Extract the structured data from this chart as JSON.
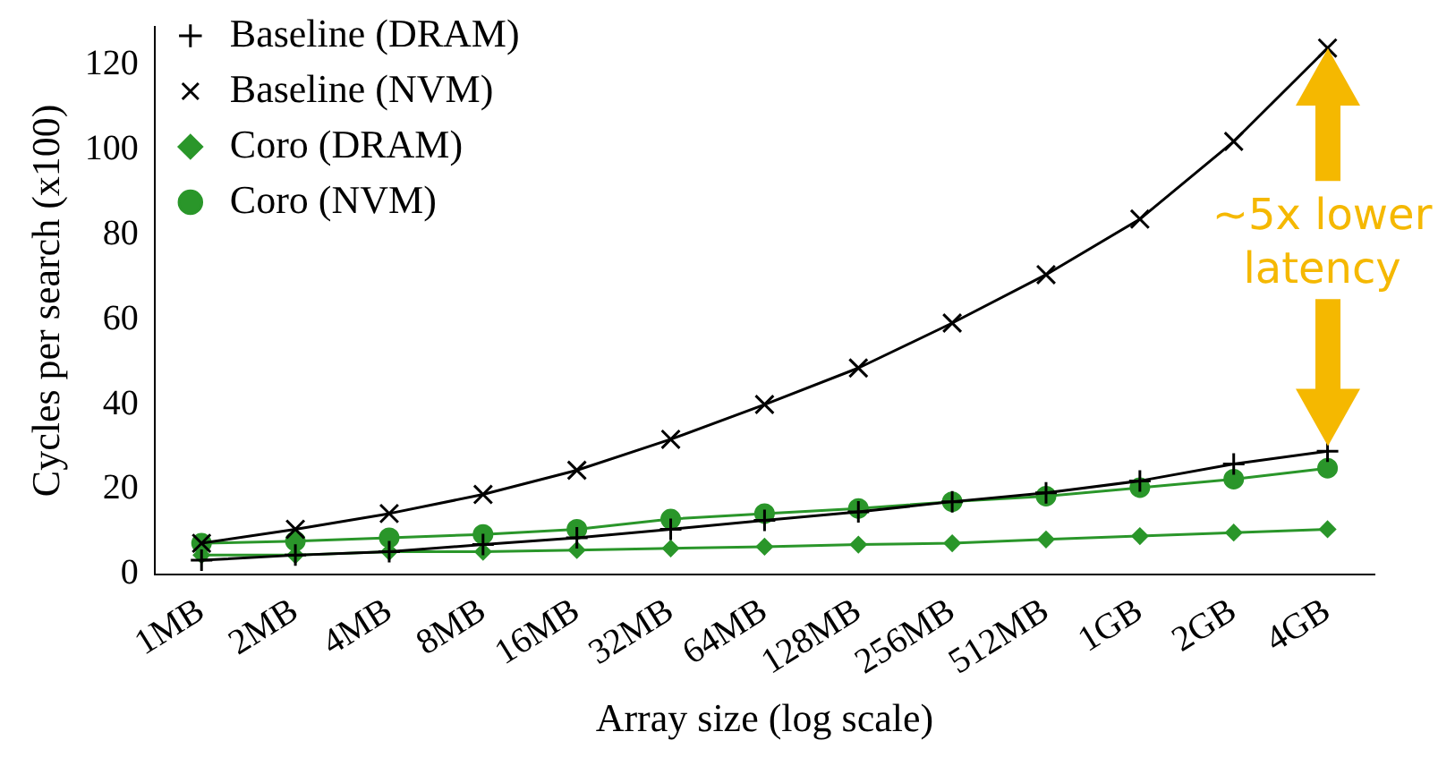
{
  "chart_data": {
    "type": "line",
    "xlabel": "Array size (log scale)",
    "ylabel": "Cycles per search (x100)",
    "categories": [
      "1MB",
      "2MB",
      "4MB",
      "8MB",
      "16MB",
      "32MB",
      "64MB",
      "128MB",
      "256MB",
      "512MB",
      "1GB",
      "2GB",
      "4GB"
    ],
    "series": [
      {
        "name": "Baseline (DRAM)",
        "color": "#000000",
        "marker": "cross",
        "values": [
          3.3,
          4.5,
          5.3,
          7,
          8.6,
          10.6,
          12.7,
          14.7,
          17.1,
          19.2,
          22,
          26,
          29
        ]
      },
      {
        "name": "Baseline (NVM)",
        "color": "#000000",
        "marker": "x",
        "values": [
          7.3,
          10.6,
          14.3,
          18.8,
          24.5,
          31.8,
          40,
          48.6,
          59.2,
          70.6,
          83.7,
          102,
          124
        ]
      },
      {
        "name": "Coro (DRAM)",
        "color": "#2a962a",
        "marker": "diamond",
        "values": [
          4.5,
          4.5,
          5.3,
          5.3,
          5.7,
          6.1,
          6.5,
          7,
          7.3,
          8.2,
          9,
          9.8,
          10.6
        ]
      },
      {
        "name": "Coro (NVM)",
        "color": "#2a962a",
        "marker": "circle",
        "values": [
          7.3,
          7.8,
          8.6,
          9.4,
          10.6,
          13,
          14.3,
          15.5,
          17.1,
          18.4,
          20.4,
          22.4,
          25
        ]
      }
    ],
    "ylim": [
      0,
      129
    ],
    "yticks": [
      0,
      20,
      40,
      60,
      80,
      100,
      120
    ],
    "grid": false,
    "legend": "top left",
    "annotations": [
      "~5x lower latency"
    ]
  }
}
